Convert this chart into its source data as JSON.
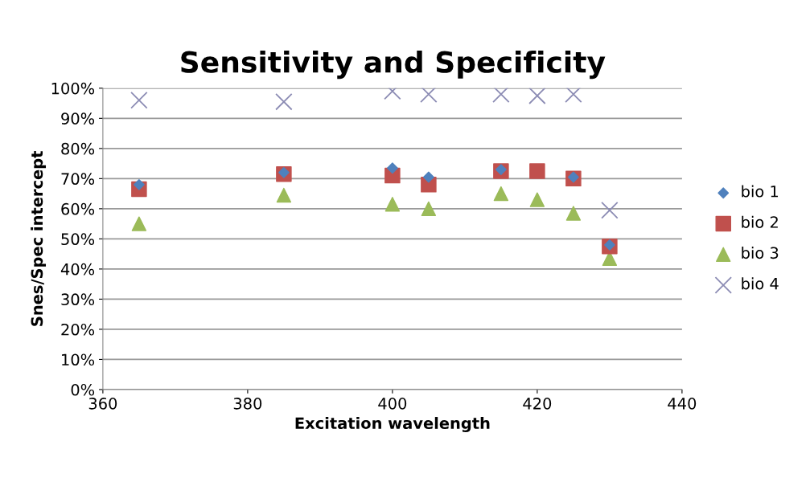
{
  "chart_data": {
    "type": "scatter",
    "title": "Sensitivity and Specificity",
    "xlabel": "Excitation wavelength",
    "ylabel": "Snes/Spec intercept",
    "x": [
      365,
      385,
      400,
      405,
      415,
      420,
      425,
      430
    ],
    "series": [
      {
        "name": "bio 1",
        "color": "#4f81bd",
        "marker": "diamond",
        "values": [
          68,
          72,
          73.5,
          70.5,
          73,
          null,
          70.5,
          48
        ]
      },
      {
        "name": "bio 2",
        "color": "#c0504d",
        "marker": "square",
        "values": [
          66.5,
          71.5,
          71,
          68,
          72.5,
          72.5,
          70,
          47.5
        ]
      },
      {
        "name": "bio 3",
        "color": "#9bbb59",
        "marker": "triangle",
        "values": [
          55,
          64.5,
          61.5,
          60,
          65,
          63,
          58.5,
          43.5
        ]
      },
      {
        "name": "bio 4",
        "color": "#8c8cb4",
        "marker": "cross",
        "values": [
          96,
          95.5,
          99,
          98,
          98,
          97.5,
          98,
          59.5
        ]
      }
    ],
    "xlim": [
      360,
      440
    ],
    "xticks": [
      360,
      380,
      400,
      420,
      440
    ],
    "ylim": [
      0,
      100
    ],
    "yticks": [
      {
        "value": 0,
        "label": "0%"
      },
      {
        "value": 10,
        "label": "10%"
      },
      {
        "value": 20,
        "label": "20%"
      },
      {
        "value": 30,
        "label": "30%"
      },
      {
        "value": 40,
        "label": "40%"
      },
      {
        "value": 50,
        "label": "50%"
      },
      {
        "value": 60,
        "label": "60%"
      },
      {
        "value": 70,
        "label": "70%"
      },
      {
        "value": 80,
        "label": "80%"
      },
      {
        "value": 90,
        "label": "90%"
      },
      {
        "value": 100,
        "label": "100%"
      }
    ],
    "grid": "y",
    "legend": "right"
  }
}
